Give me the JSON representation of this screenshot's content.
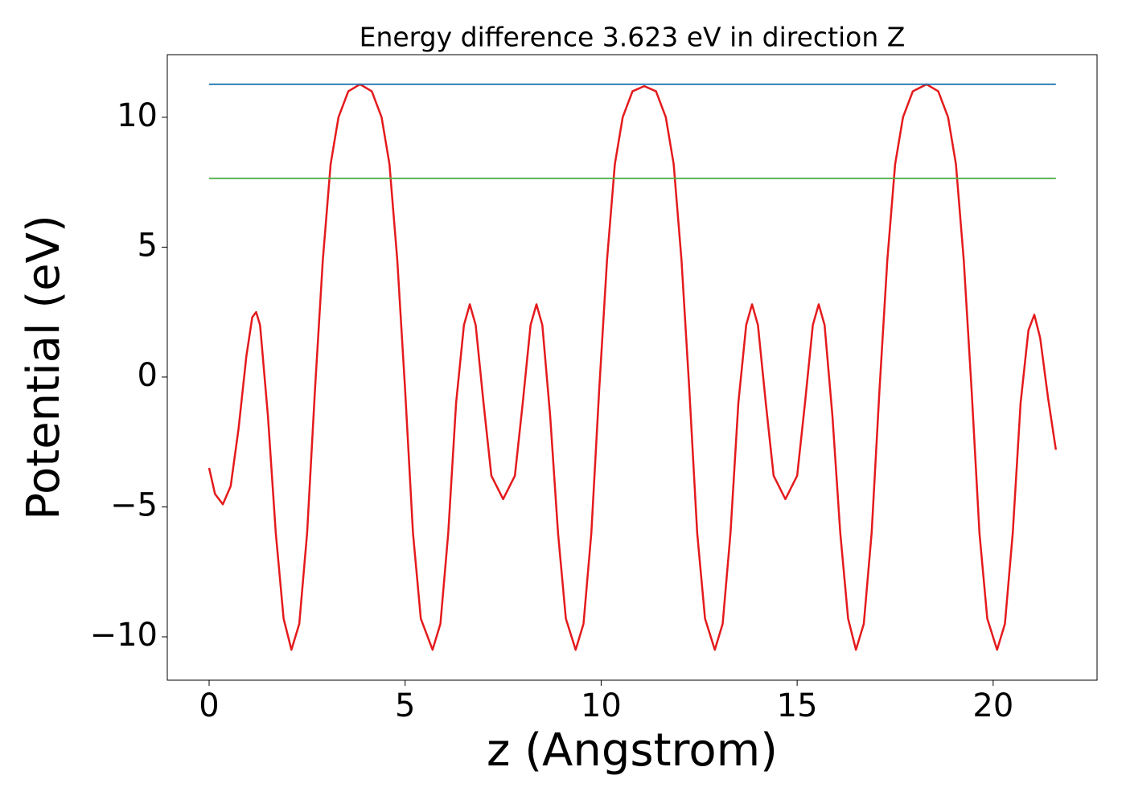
{
  "chart_data": {
    "type": "line",
    "title": "Energy difference 3.623 eV in direction Z",
    "x_label": "z (Angstrom)",
    "y_label": "Potential (eV)",
    "xlim": [
      -1.067,
      22.65
    ],
    "ylim": [
      -11.67,
      12.41
    ],
    "xticks": [
      0,
      5,
      10,
      15,
      20
    ],
    "yticks": [
      {
        "value": -10,
        "label": "−10"
      },
      {
        "value": -5,
        "label": "−5"
      },
      0,
      5,
      10
    ],
    "series": [
      {
        "color": "#e41a1c",
        "x": [
          0,
          0.15,
          0.35,
          0.55,
          0.75,
          0.95,
          1.1,
          1.2,
          1.3,
          1.5,
          1.7,
          1.9,
          2.1,
          2.3,
          2.5,
          2.7,
          2.9,
          3.1,
          3.3,
          3.55,
          3.85,
          4.15,
          4.4,
          4.6,
          4.8,
          5.0,
          5.2,
          5.4,
          5.7,
          5.9,
          6.1,
          6.3,
          6.5,
          6.65,
          6.8,
          7.0,
          7.2,
          7.5,
          7.8,
          8.0,
          8.2,
          8.35,
          8.5,
          8.7,
          8.9,
          9.1,
          9.35,
          9.55,
          9.75,
          9.95,
          10.15,
          10.35,
          10.55,
          10.8,
          11.1,
          11.4,
          11.65,
          11.85,
          12.05,
          12.25,
          12.45,
          12.65,
          12.9,
          13.1,
          13.3,
          13.5,
          13.7,
          13.85,
          14.0,
          14.2,
          14.4,
          14.7,
          15.0,
          15.2,
          15.4,
          15.55,
          15.7,
          15.9,
          16.1,
          16.3,
          16.5,
          16.7,
          16.9,
          17.1,
          17.3,
          17.5,
          17.7,
          17.95,
          18.3,
          18.6,
          18.85,
          19.05,
          19.25,
          19.45,
          19.65,
          19.85,
          20.1,
          20.3,
          20.5,
          20.7,
          20.9,
          21.05,
          21.2,
          21.4,
          21.6
        ],
        "values": [
          -3.5,
          -4.5,
          -4.9,
          -4.2,
          -2.0,
          0.8,
          2.3,
          2.5,
          2.0,
          -1.5,
          -6.0,
          -9.3,
          -10.5,
          -9.5,
          -6.0,
          -0.5,
          4.5,
          8.2,
          10.0,
          11.0,
          11.27,
          11.0,
          10.0,
          8.2,
          4.5,
          -0.5,
          -6.0,
          -9.3,
          -10.5,
          -9.5,
          -6.0,
          -1.0,
          2.0,
          2.8,
          2.0,
          -1.0,
          -3.8,
          -4.7,
          -3.8,
          -1.0,
          2.0,
          2.8,
          2.0,
          -1.5,
          -6.0,
          -9.3,
          -10.5,
          -9.5,
          -6.0,
          -0.5,
          4.5,
          8.2,
          10.0,
          11.0,
          11.2,
          11.0,
          10.0,
          8.2,
          4.5,
          -0.5,
          -6.0,
          -9.3,
          -10.5,
          -9.5,
          -6.0,
          -1.0,
          2.0,
          2.8,
          2.0,
          -1.0,
          -3.8,
          -4.7,
          -3.8,
          -1.0,
          2.0,
          2.8,
          2.0,
          -1.5,
          -6.0,
          -9.3,
          -10.5,
          -9.5,
          -6.0,
          -0.5,
          4.5,
          8.2,
          10.0,
          11.0,
          11.27,
          11.0,
          10.0,
          8.2,
          4.5,
          -0.5,
          -6.0,
          -9.3,
          -10.5,
          -9.5,
          -6.0,
          -1.0,
          1.8,
          2.4,
          1.5,
          -0.8,
          -2.8
        ]
      },
      {
        "color": "#1f77b4",
        "x": [
          0,
          21.6
        ],
        "values": [
          11.27,
          11.27
        ]
      },
      {
        "color": "#4daf4a",
        "x": [
          0,
          21.6
        ],
        "values": [
          7.65,
          7.65
        ]
      }
    ]
  }
}
